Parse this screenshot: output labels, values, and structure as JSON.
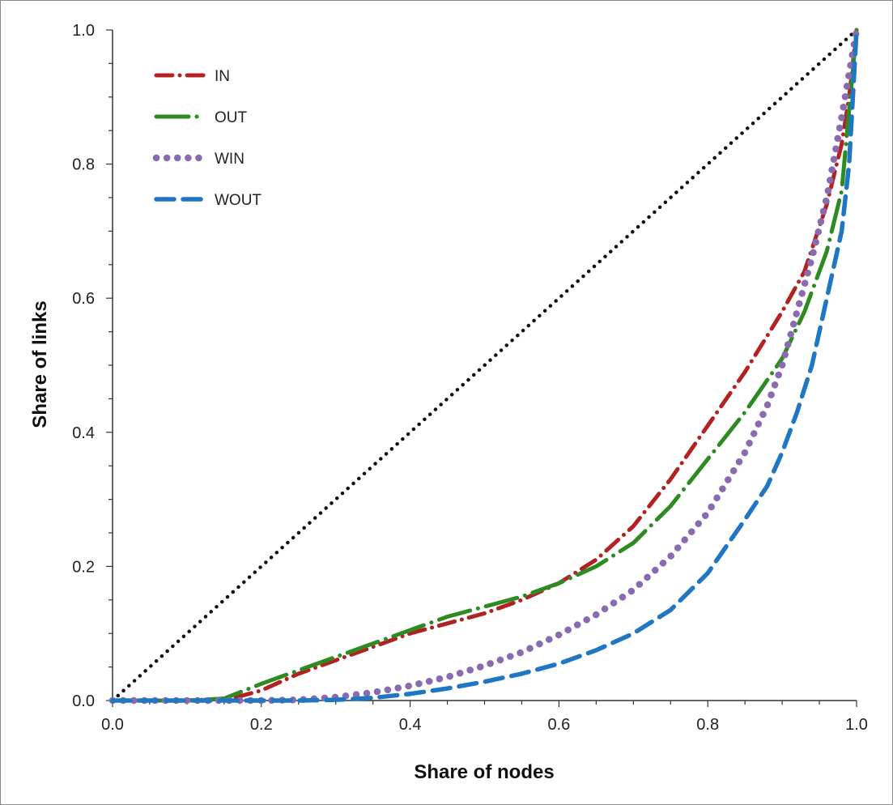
{
  "chart_data": {
    "type": "line",
    "xlabel": "Share of nodes",
    "ylabel": "Share of links",
    "xlim": [
      0,
      1
    ],
    "ylim": [
      0,
      1
    ],
    "x_ticks": [
      "0.0",
      "0.2",
      "0.4",
      "0.6",
      "0.8",
      "1.0"
    ],
    "y_ticks": [
      "0.0",
      "0.2",
      "0.4",
      "0.6",
      "0.8",
      "1.0"
    ],
    "grid": false,
    "legend_position": "top-left",
    "reference_line": {
      "x": [
        0,
        1
      ],
      "y": [
        0,
        1
      ],
      "color": "#111111",
      "style": "dotted"
    },
    "series": [
      {
        "name": "IN",
        "color": "#b22222",
        "style": "dash-dot",
        "x": [
          0.0,
          0.1,
          0.16,
          0.2,
          0.25,
          0.3,
          0.35,
          0.4,
          0.45,
          0.5,
          0.55,
          0.6,
          0.65,
          0.7,
          0.75,
          0.8,
          0.85,
          0.9,
          0.93,
          0.96,
          0.98,
          0.99,
          1.0
        ],
        "y": [
          0.0,
          0.0,
          0.003,
          0.015,
          0.04,
          0.06,
          0.08,
          0.1,
          0.115,
          0.13,
          0.15,
          0.175,
          0.21,
          0.26,
          0.33,
          0.41,
          0.49,
          0.58,
          0.64,
          0.74,
          0.83,
          0.9,
          1.0
        ]
      },
      {
        "name": "OUT",
        "color": "#2e8b22",
        "style": "long-dash-dot",
        "x": [
          0.0,
          0.1,
          0.15,
          0.2,
          0.25,
          0.3,
          0.35,
          0.4,
          0.45,
          0.5,
          0.55,
          0.6,
          0.65,
          0.7,
          0.75,
          0.8,
          0.85,
          0.9,
          0.93,
          0.96,
          0.98,
          1.0
        ],
        "y": [
          0.0,
          0.0,
          0.003,
          0.025,
          0.045,
          0.065,
          0.085,
          0.105,
          0.125,
          0.14,
          0.155,
          0.175,
          0.2,
          0.235,
          0.29,
          0.36,
          0.43,
          0.51,
          0.58,
          0.67,
          0.76,
          1.0
        ]
      },
      {
        "name": "WIN",
        "color": "#8a6bb0",
        "style": "dotted",
        "x": [
          0.0,
          0.15,
          0.2,
          0.25,
          0.3,
          0.35,
          0.4,
          0.45,
          0.5,
          0.55,
          0.6,
          0.65,
          0.7,
          0.75,
          0.8,
          0.85,
          0.88,
          0.9,
          0.92,
          0.94,
          0.96,
          0.98,
          1.0
        ],
        "y": [
          0.0,
          0.0,
          0.0,
          0.001,
          0.005,
          0.012,
          0.022,
          0.035,
          0.052,
          0.072,
          0.098,
          0.128,
          0.165,
          0.215,
          0.28,
          0.37,
          0.44,
          0.5,
          0.58,
          0.66,
          0.75,
          0.87,
          1.0
        ]
      },
      {
        "name": "WOUT",
        "color": "#1f77c4",
        "style": "dashed",
        "x": [
          0.0,
          0.2,
          0.25,
          0.3,
          0.35,
          0.4,
          0.45,
          0.5,
          0.55,
          0.6,
          0.65,
          0.7,
          0.75,
          0.8,
          0.85,
          0.88,
          0.9,
          0.92,
          0.94,
          0.96,
          0.97,
          0.98,
          0.99,
          1.0
        ],
        "y": [
          0.0,
          0.0,
          0.0,
          0.001,
          0.004,
          0.01,
          0.018,
          0.028,
          0.04,
          0.055,
          0.075,
          0.1,
          0.135,
          0.19,
          0.27,
          0.32,
          0.37,
          0.43,
          0.5,
          0.6,
          0.65,
          0.7,
          0.8,
          1.0
        ]
      }
    ]
  }
}
